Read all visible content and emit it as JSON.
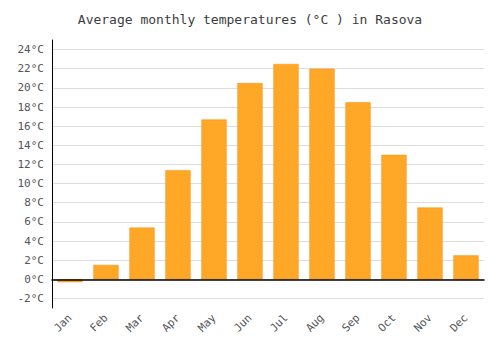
{
  "chart_data": {
    "type": "bar",
    "title": "Average monthly temperatures (°C ) in Rasova",
    "categories": [
      "Jan",
      "Feb",
      "Mar",
      "Apr",
      "May",
      "Jun",
      "Jul",
      "Aug",
      "Sep",
      "Oct",
      "Nov",
      "Dec"
    ],
    "values": [
      -0.3,
      1.5,
      5.4,
      11.4,
      16.7,
      20.5,
      22.5,
      22.0,
      18.5,
      13.0,
      7.5,
      2.5
    ],
    "color": "#FFA726",
    "ylim": [
      -3,
      25
    ],
    "yticks": [
      {
        "value": -2,
        "label": "-2°C"
      },
      {
        "value": 0,
        "label": "0°C"
      },
      {
        "value": 2,
        "label": "2°C"
      },
      {
        "value": 4,
        "label": "4°C"
      },
      {
        "value": 6,
        "label": "6°C"
      },
      {
        "value": 8,
        "label": "8°C"
      },
      {
        "value": 10,
        "label": "10°C"
      },
      {
        "value": 12,
        "label": "12°C"
      },
      {
        "value": 14,
        "label": "14°C"
      },
      {
        "value": 16,
        "label": "16°C"
      },
      {
        "value": 18,
        "label": "18°C"
      },
      {
        "value": 20,
        "label": "20°C"
      },
      {
        "value": 22,
        "label": "22°C"
      },
      {
        "value": 24,
        "label": "24°C"
      }
    ],
    "grid": true
  }
}
